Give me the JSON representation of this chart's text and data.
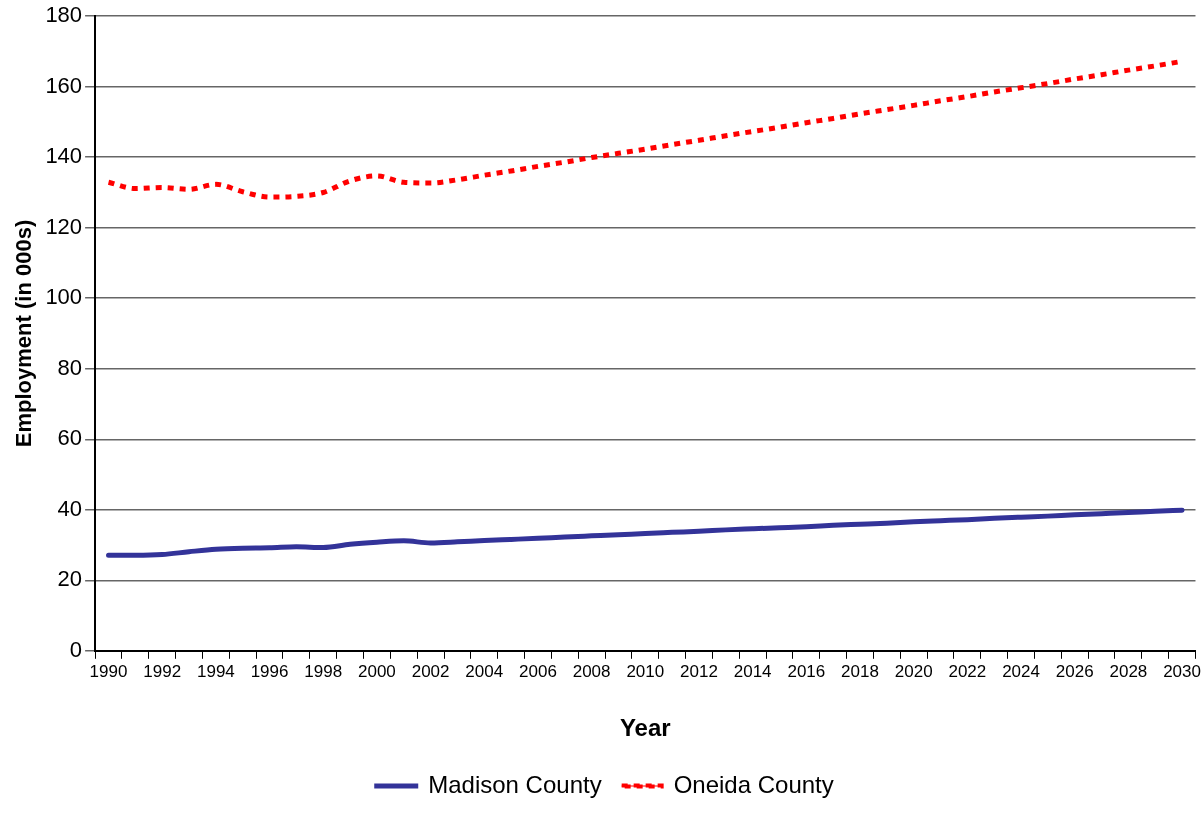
{
  "chart_data": {
    "type": "line",
    "xlabel": "Year",
    "ylabel": "Employment (in 000s)",
    "categories": [
      "1990",
      null,
      "1992",
      null,
      "1994",
      null,
      "1996",
      null,
      "1998",
      null,
      "2000",
      null,
      "2002",
      null,
      "2004",
      null,
      "2006",
      null,
      "2008",
      null,
      "2010",
      null,
      "2012",
      null,
      "2014",
      null,
      "2016",
      null,
      "2018",
      null,
      "2020",
      null,
      "2022",
      null,
      "2024",
      null,
      "2026",
      null,
      "2028",
      null,
      "2030"
    ],
    "series": [
      {
        "name": "Madison County",
        "color": "#333399",
        "line_style": "solid",
        "values": [
          27.1,
          27.1,
          27.3,
          28.1,
          28.8,
          29.1,
          29.2,
          29.5,
          29.3,
          30.2,
          30.8,
          31.2,
          30.6,
          30.9,
          31.3,
          31.6,
          31.9,
          32.3,
          32.6,
          32.9,
          33.3,
          33.6,
          33.9,
          34.3,
          34.6,
          34.9,
          35.2,
          35.6,
          35.9,
          36.2,
          36.6,
          36.9,
          37.2,
          37.6,
          37.9,
          38.2,
          38.6,
          38.9,
          39.2,
          39.6,
          39.9
        ]
      },
      {
        "name": "Oneida County",
        "color": "#ff0000",
        "line_style": "dotted",
        "values": [
          132.9,
          131.1,
          131.4,
          130.9,
          132.3,
          130.2,
          128.7,
          128.9,
          130.0,
          133.3,
          134.7,
          132.9,
          132.7,
          133.6,
          134.9,
          136.1,
          137.4,
          138.6,
          139.9,
          141.1,
          142.3,
          143.6,
          144.8,
          146.1,
          147.3,
          148.5,
          149.8,
          151.0,
          152.3,
          153.5,
          154.7,
          156.0,
          157.2,
          158.5,
          159.7,
          160.9,
          162.2,
          163.4,
          164.7,
          165.9,
          167.2
        ]
      }
    ],
    "ylim": [
      0,
      180
    ],
    "yticks": [
      0,
      20,
      40,
      60,
      80,
      100,
      120,
      140,
      160,
      180
    ],
    "grid": "y",
    "legend": "bottom",
    "marker": "none"
  }
}
